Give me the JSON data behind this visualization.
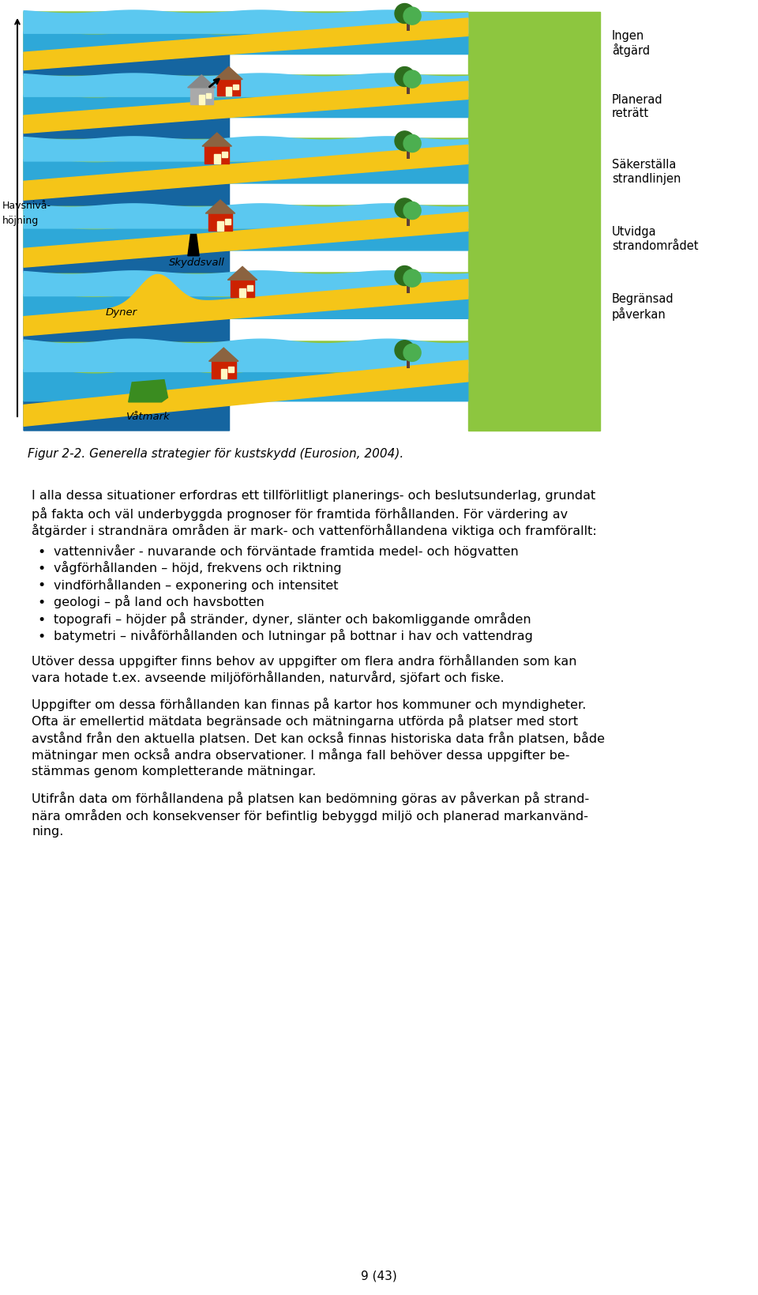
{
  "figure_caption": "Figur 2-2. Generella strategier för kustskydd (Eurosion, 2004).",
  "bullets": [
    "vattennivåer - nuvarande och förväntade framtida medel- och högvatten",
    "vågförhållanden – höjd, frekvens och riktning",
    "vindفörhållanden – exponering och intensitet",
    "geologi – på land och havsbotten",
    "topografi – höjder på stränder, dyner, slänter och bakomliggande områden",
    "batymetri – nivåförhållanden och lutningar på bottnar i hav och vattendrag"
  ],
  "page_footer": "9 (43)",
  "bg_color": "#ffffff",
  "SAND": "#F5C518",
  "WATER_LIGHT": "#5BC8F0",
  "WATER_MID": "#2EA8D8",
  "WATER_DARK": "#1565A0",
  "WAVE_LIGHT": "#87CEEB",
  "GREEN_DARK": "#2D6E1E",
  "GREEN_MID": "#4CAF50",
  "LAND_GREEN": "#8DC63F",
  "RED_HOUSE": "#CC2200",
  "BROWN_ROOF": "#8B6340",
  "GRAY_WALL": "#AAAAAA",
  "GRAY_ROOF": "#888888",
  "BLACK": "#000000",
  "WETLAND_GREEN": "#3A8C20"
}
